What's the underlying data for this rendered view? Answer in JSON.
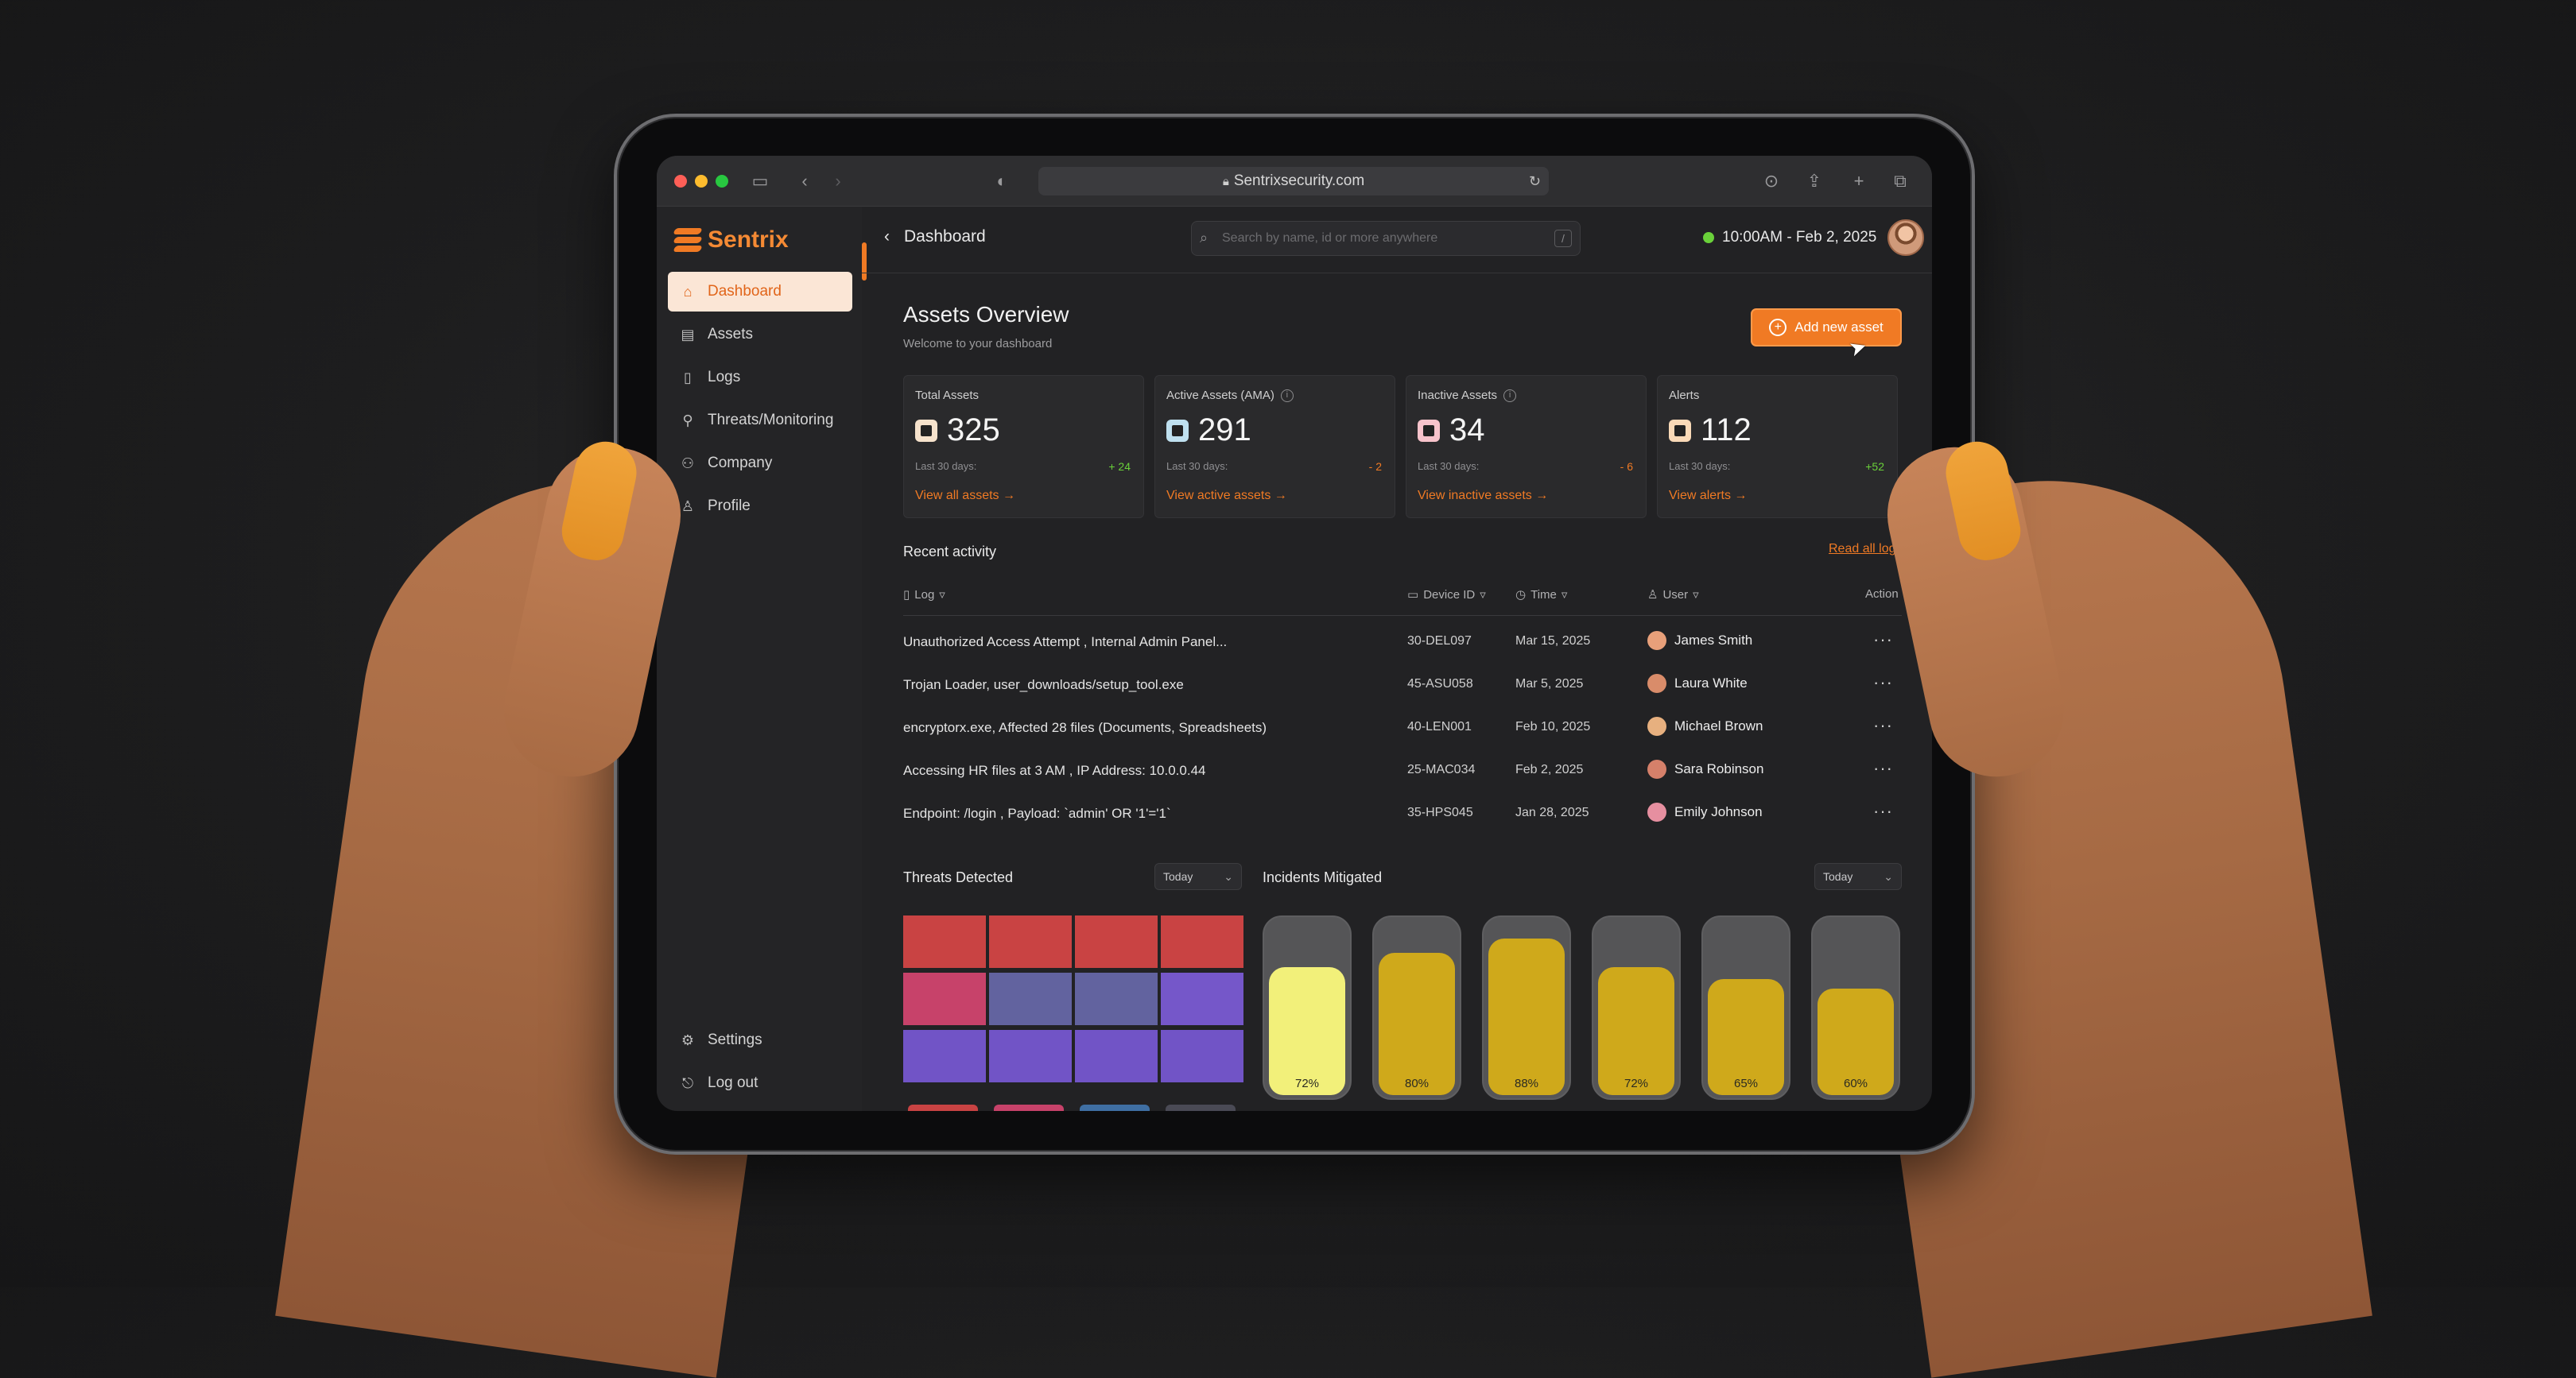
{
  "browser": {
    "url": "Sentrixsecurity.com"
  },
  "sidebar": {
    "brand": "Sentrix",
    "items": [
      {
        "label": "Dashboard",
        "icon": "home-icon",
        "active": true
      },
      {
        "label": "Assets",
        "icon": "assets-icon"
      },
      {
        "label": "Logs",
        "icon": "logs-icon"
      },
      {
        "label": "Threats/Monitoring",
        "icon": "monitoring-icon"
      },
      {
        "label": "Company",
        "icon": "company-icon"
      },
      {
        "label": "Profile",
        "icon": "user-icon"
      }
    ],
    "bottom_items": [
      {
        "label": "Settings",
        "icon": "gear-icon"
      },
      {
        "label": "Log out",
        "icon": "logout-icon"
      }
    ]
  },
  "topbar": {
    "breadcrumb": "Dashboard",
    "search_placeholder": "Search by name, id or more anywhere",
    "search_shortcut": "/",
    "datetime": "10:00AM - Feb 2, 2025"
  },
  "header": {
    "title": "Assets Overview",
    "subtitle": "Welcome to your dashboard",
    "add_button": "Add new asset"
  },
  "stats": [
    {
      "title": "Total Assets",
      "value": "325",
      "period": "Last 30 days:",
      "delta": "+ 24",
      "delta_color": "#6ad13a",
      "link": "View all assets",
      "icon_color": "#f6e2cc",
      "info": false
    },
    {
      "title": "Active Assets (AMA)",
      "value": "291",
      "period": "Last 30 days:",
      "delta": "- 2",
      "delta_color": "#f07a24",
      "link": "View active assets",
      "icon_color": "#bfe0ef",
      "info": true
    },
    {
      "title": "Inactive Assets",
      "value": "34",
      "period": "Last 30 days:",
      "delta": "- 6",
      "delta_color": "#f07a24",
      "link": "View inactive assets",
      "icon_color": "#f7c3cb",
      "info": true
    },
    {
      "title": "Alerts",
      "value": "112",
      "period": "Last 30 days:",
      "delta": "+52",
      "delta_color": "#6ad13a",
      "link": "View alerts",
      "icon_color": "#f9d9b7",
      "info": false
    }
  ],
  "activity": {
    "title": "Recent activity",
    "read_all": "Read all logs",
    "columns": {
      "log": "Log",
      "device": "Device ID",
      "time": "Time",
      "user": "User",
      "action": "Action"
    },
    "rows": [
      {
        "log": "Unauthorized Access Attempt , Internal Admin Panel...",
        "device": "30-DEL097",
        "time": "Mar 15, 2025",
        "user": "James Smith",
        "avatar": "#e8a07a"
      },
      {
        "log": "Trojan Loader,  user_downloads/setup_tool.exe",
        "device": "45-ASU058",
        "time": "Mar 5, 2025",
        "user": "Laura White",
        "avatar": "#d98c6a"
      },
      {
        "log": "encryptorx.exe,  Affected 28 files (Documents, Spreadsheets)",
        "device": "40-LEN001",
        "time": "Feb 10, 2025",
        "user": "Michael Brown",
        "avatar": "#e7b07f"
      },
      {
        "log": "Accessing HR files at 3 AM , IP Address: 10.0.0.44",
        "device": "25-MAC034",
        "time": "Feb 2, 2025",
        "user": "Sara Robinson",
        "avatar": "#d5806a"
      },
      {
        "log": "Endpoint: /login , Payload: `admin' OR '1'='1`",
        "device": "35-HPS045",
        "time": "Jan 28, 2025",
        "user": "Emily Johnson",
        "avatar": "#e68fa0"
      }
    ]
  },
  "threats": {
    "title": "Threats Detected",
    "period": "Today",
    "cell_colors": [
      "#c94343",
      "#c94343",
      "#c94343",
      "#c94343",
      "#c7426a",
      "#62639f",
      "#62639f",
      "#7557c9",
      "#7154c6",
      "#7154c6",
      "#7154c6",
      "#7154c6"
    ],
    "peek_colors": [
      "#c94343",
      "#c7426a",
      "#3f6fa3",
      "#4a4a55"
    ]
  },
  "incidents": {
    "title": "Incidents Mitigated",
    "period": "Today",
    "bars": [
      {
        "label": "72%",
        "value": 72,
        "color": "#f2f07a"
      },
      {
        "label": "80%",
        "value": 80,
        "color": "#cfa91b"
      },
      {
        "label": "88%",
        "value": 88,
        "color": "#cfa91b"
      },
      {
        "label": "72%",
        "value": 72,
        "color": "#cfa91b"
      },
      {
        "label": "65%",
        "value": 65,
        "color": "#cfa91b"
      },
      {
        "label": "60%",
        "value": 60,
        "color": "#cfa91b"
      }
    ]
  }
}
